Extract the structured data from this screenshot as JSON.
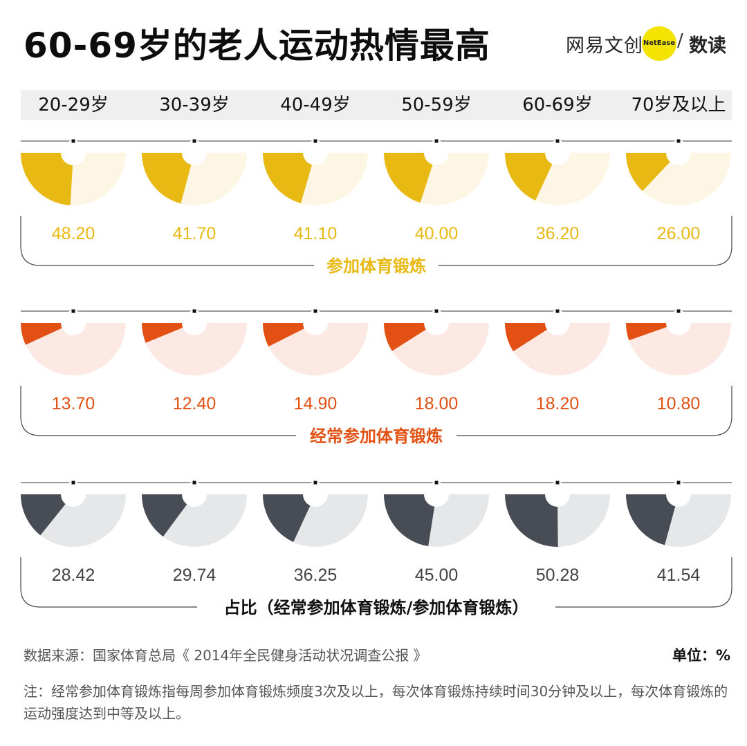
{
  "title": "60-69岁的老人运动热情最高",
  "logo": {
    "brand": "网易文创",
    "badge": "NetEase",
    "slash": "/",
    "sub": "数读"
  },
  "chart_data": {
    "type": "pie",
    "categories": [
      "20-29岁",
      "30-39岁",
      "40-49岁",
      "50-59岁",
      "60-69岁",
      "70岁及以上"
    ],
    "series": [
      {
        "name": "参加体育锻炼",
        "values": [
          48.2,
          41.7,
          41.1,
          40.0,
          36.2,
          26.0
        ],
        "color": "#e8b912",
        "light": "#fdf6e4"
      },
      {
        "name": "经常参加体育锻炼",
        "values": [
          13.7,
          12.4,
          14.9,
          18.0,
          18.2,
          10.8
        ],
        "color": "#e25113",
        "light": "#fde9e3"
      },
      {
        "name": "占比（经常参加体育锻炼/参加体育锻炼）",
        "values": [
          28.42,
          29.74,
          36.25,
          45.0,
          50.28,
          41.54
        ],
        "color": "#474c55",
        "light": "#e6e7e9"
      }
    ],
    "labels": [
      [
        "48.20",
        "41.70",
        "41.10",
        "40.00",
        "36.20",
        "26.00"
      ],
      [
        "13.70",
        "12.40",
        "14.90",
        "18.00",
        "18.20",
        "10.80"
      ],
      [
        "28.42",
        "29.74",
        "36.25",
        "45.00",
        "50.28",
        "41.54"
      ]
    ],
    "unit": "单位：%"
  },
  "footer": {
    "source": "数据来源：国家体育总局《 2014年全民健身活动状况调查公报 》",
    "note": "注：经常参加体育锻炼指每周参加体育锻炼频度3次及以上，每次体育锻炼持续时间30分钟及以上，每次体育锻炼的运动强度达到中等及以上。"
  }
}
